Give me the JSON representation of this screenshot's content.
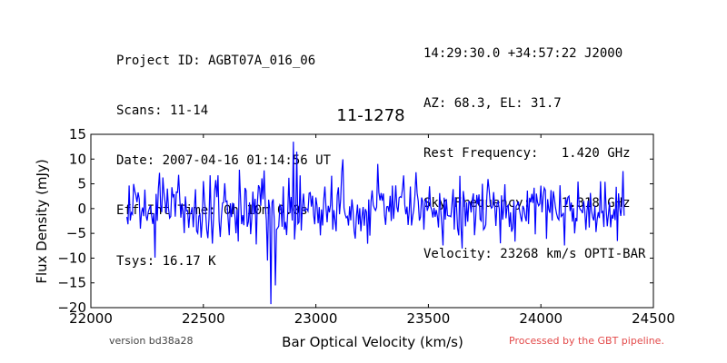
{
  "header": {
    "left_lines": [
      "Project ID: AGBT07A_016_06",
      "Scans: 11-14",
      "Date: 2007-04-16 01:14:56 UT",
      "Eff Int Time: 0h 10m 0.0s",
      "Tsys: 16.17 K"
    ],
    "right_lines": [
      "14:29:30.0 +34:57:22 J2000",
      "AZ: 68.3, EL: 31.7",
      "Rest Frequency:   1.420 GHz",
      "Sky Frequency:    1.318 GHz",
      "Velocity: 23268 km/s OPTI-BAR"
    ]
  },
  "footer": {
    "version": "version bd38a28",
    "processed": "Processed by the GBT pipeline."
  },
  "colors": {
    "series": "#0000ff",
    "processed_text": "#e34a4a"
  },
  "chart_data": {
    "type": "line",
    "title": "11-1278",
    "xlabel": "Bar Optical Velocity (km/s)",
    "ylabel": "Flux Density (mJy)",
    "xlim": [
      22000,
      24500
    ],
    "ylim": [
      -20,
      15
    ],
    "xticks": [
      22000,
      22500,
      23000,
      23500,
      24000,
      24500
    ],
    "yticks": [
      -20,
      -15,
      -10,
      -5,
      0,
      5,
      10,
      15
    ],
    "grid": false,
    "legend": "none",
    "series": [
      {
        "x_range": [
          22160,
          24370
        ],
        "step_kms": 5,
        "noise_sigma_mjy": 3.3,
        "features": [
          {
            "x": 22785,
            "y": -10.5
          },
          {
            "x": 22800,
            "y": -19.3
          },
          {
            "x": 22820,
            "y": -15.5
          },
          {
            "x": 22900,
            "y": 14.0
          },
          {
            "x": 22915,
            "y": 11.5
          }
        ]
      }
    ]
  }
}
